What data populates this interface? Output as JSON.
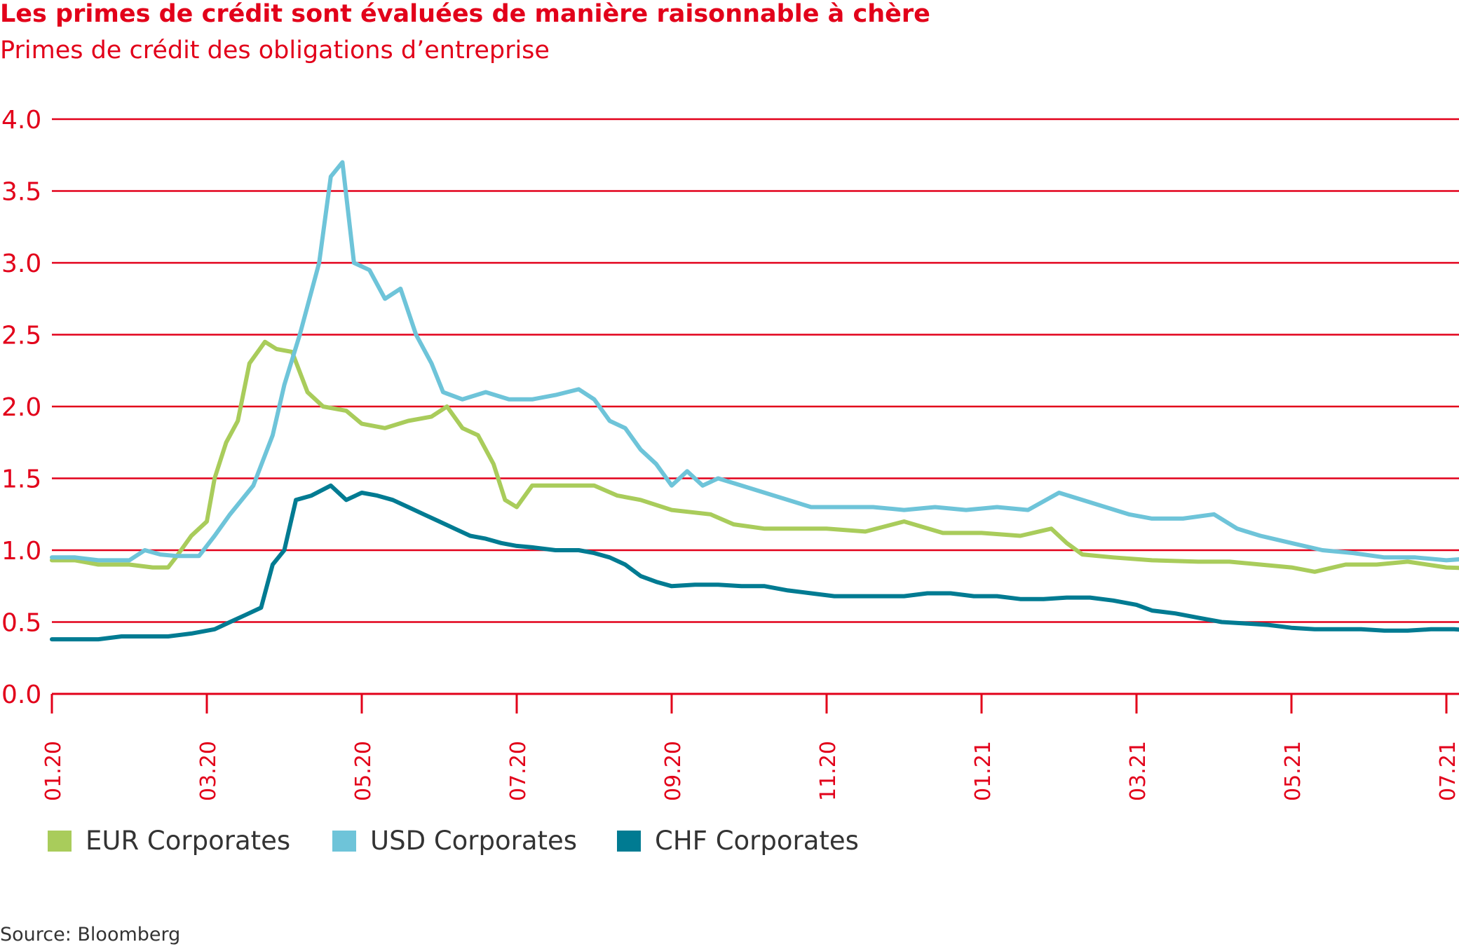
{
  "title": "Les primes de crédit sont évaluées de manière raisonnable à chère",
  "subtitle": "Primes de crédit des obligations d’entreprise",
  "source": "Source: Bloomberg",
  "colors": {
    "accent": "#e2001a",
    "eur": "#a9cc5b",
    "usd": "#6ec4d9",
    "chf": "#007b92"
  },
  "chart_data": {
    "type": "line",
    "ylim": [
      0,
      4
    ],
    "yticks": [
      "0.0",
      "0.5",
      "1.0",
      "1.5",
      "2.0",
      "2.5",
      "3.0",
      "3.5",
      "4.0"
    ],
    "xticks": [
      "01.20",
      "03.20",
      "05.20",
      "07.20",
      "09.20",
      "11.20",
      "01.21",
      "03.21",
      "05.21",
      "07.21"
    ],
    "grid": true,
    "legend_position": "bottom-left",
    "series": [
      {
        "name": "EUR Corporates",
        "color": "#a9cc5b",
        "points": [
          [
            "01.20",
            0.93
          ],
          [
            0.3,
            0.93
          ],
          [
            0.6,
            0.9
          ],
          [
            1.0,
            0.9
          ],
          [
            1.3,
            0.88
          ],
          [
            1.5,
            0.88
          ],
          [
            1.6,
            0.95
          ],
          [
            1.8,
            1.1
          ],
          [
            2.0,
            1.2
          ],
          [
            2.1,
            1.5
          ],
          [
            2.25,
            1.75
          ],
          [
            2.4,
            1.9
          ],
          [
            2.55,
            2.3
          ],
          [
            2.75,
            2.45
          ],
          [
            2.9,
            2.4
          ],
          [
            3.1,
            2.38
          ],
          [
            3.3,
            2.1
          ],
          [
            3.5,
            2.0
          ],
          [
            3.8,
            1.97
          ],
          [
            4.0,
            1.88
          ],
          [
            4.3,
            1.85
          ],
          [
            4.6,
            1.9
          ],
          [
            4.9,
            1.93
          ],
          [
            5.1,
            2.0
          ],
          [
            5.3,
            1.85
          ],
          [
            5.5,
            1.8
          ],
          [
            5.7,
            1.6
          ],
          [
            5.85,
            1.35
          ],
          [
            6.0,
            1.3
          ],
          [
            6.2,
            1.45
          ],
          [
            6.5,
            1.45
          ],
          [
            7.0,
            1.45
          ],
          [
            7.3,
            1.38
          ],
          [
            7.6,
            1.35
          ],
          [
            8.0,
            1.28
          ],
          [
            8.5,
            1.25
          ],
          [
            8.8,
            1.18
          ],
          [
            9.2,
            1.15
          ],
          [
            9.6,
            1.15
          ],
          [
            10.0,
            1.15
          ],
          [
            10.5,
            1.13
          ],
          [
            11.0,
            1.2
          ],
          [
            11.5,
            1.12
          ],
          [
            12.0,
            1.12
          ],
          [
            12.5,
            1.1
          ],
          [
            12.9,
            1.15
          ],
          [
            13.1,
            1.05
          ],
          [
            13.3,
            0.97
          ],
          [
            13.7,
            0.95
          ],
          [
            14.2,
            0.93
          ],
          [
            14.8,
            0.92
          ],
          [
            15.2,
            0.92
          ],
          [
            15.6,
            0.9
          ],
          [
            16.0,
            0.88
          ],
          [
            16.3,
            0.85
          ],
          [
            16.7,
            0.9
          ],
          [
            17.1,
            0.9
          ],
          [
            17.5,
            0.92
          ],
          [
            18.0,
            0.88
          ],
          [
            18.5,
            0.87
          ],
          [
            19.0,
            0.87
          ],
          [
            19.6,
            0.9
          ],
          [
            20.0,
            0.9
          ],
          [
            20.5,
            0.9
          ],
          [
            21.0,
            0.9
          ],
          [
            21.5,
            0.87
          ],
          [
            22.0,
            0.85
          ],
          [
            22.5,
            0.84
          ],
          [
            23.0,
            0.84
          ],
          [
            23.5,
            0.84
          ],
          [
            24.0,
            0.84
          ],
          [
            24.5,
            0.83
          ],
          [
            24.9,
            0.82
          ]
        ]
      },
      {
        "name": "USD Corporates",
        "color": "#6ec4d9",
        "points": [
          [
            "01.20",
            0.95
          ],
          [
            0.3,
            0.95
          ],
          [
            0.6,
            0.93
          ],
          [
            1.0,
            0.93
          ],
          [
            1.2,
            1.0
          ],
          [
            1.4,
            0.97
          ],
          [
            1.6,
            0.96
          ],
          [
            1.9,
            0.96
          ],
          [
            2.1,
            1.1
          ],
          [
            2.3,
            1.25
          ],
          [
            2.6,
            1.45
          ],
          [
            2.85,
            1.8
          ],
          [
            3.0,
            2.15
          ],
          [
            3.2,
            2.5
          ],
          [
            3.45,
            3.0
          ],
          [
            3.6,
            3.6
          ],
          [
            3.75,
            3.7
          ],
          [
            3.9,
            3.0
          ],
          [
            4.1,
            2.95
          ],
          [
            4.3,
            2.75
          ],
          [
            4.5,
            2.82
          ],
          [
            4.7,
            2.5
          ],
          [
            4.9,
            2.3
          ],
          [
            5.05,
            2.1
          ],
          [
            5.3,
            2.05
          ],
          [
            5.6,
            2.1
          ],
          [
            5.9,
            2.05
          ],
          [
            6.2,
            2.05
          ],
          [
            6.5,
            2.08
          ],
          [
            6.8,
            2.12
          ],
          [
            7.0,
            2.05
          ],
          [
            7.2,
            1.9
          ],
          [
            7.4,
            1.85
          ],
          [
            7.6,
            1.7
          ],
          [
            7.8,
            1.6
          ],
          [
            8.0,
            1.45
          ],
          [
            8.2,
            1.55
          ],
          [
            8.4,
            1.45
          ],
          [
            8.6,
            1.5
          ],
          [
            8.9,
            1.45
          ],
          [
            9.2,
            1.4
          ],
          [
            9.5,
            1.35
          ],
          [
            9.8,
            1.3
          ],
          [
            10.2,
            1.3
          ],
          [
            10.6,
            1.3
          ],
          [
            11.0,
            1.28
          ],
          [
            11.4,
            1.3
          ],
          [
            11.8,
            1.28
          ],
          [
            12.2,
            1.3
          ],
          [
            12.6,
            1.28
          ],
          [
            13.0,
            1.4
          ],
          [
            13.3,
            1.35
          ],
          [
            13.6,
            1.3
          ],
          [
            13.9,
            1.25
          ],
          [
            14.2,
            1.22
          ],
          [
            14.6,
            1.22
          ],
          [
            15.0,
            1.25
          ],
          [
            15.3,
            1.15
          ],
          [
            15.6,
            1.1
          ],
          [
            16.0,
            1.05
          ],
          [
            16.4,
            1.0
          ],
          [
            16.8,
            0.98
          ],
          [
            17.2,
            0.95
          ],
          [
            17.6,
            0.95
          ],
          [
            18.0,
            0.93
          ],
          [
            18.5,
            0.95
          ],
          [
            19.0,
            0.95
          ],
          [
            19.4,
            0.92
          ],
          [
            19.8,
            0.9
          ],
          [
            20.2,
            0.95
          ],
          [
            20.6,
            0.97
          ],
          [
            21.0,
            0.97
          ],
          [
            21.4,
            0.97
          ],
          [
            21.8,
            0.93
          ],
          [
            22.2,
            0.9
          ],
          [
            22.6,
            0.88
          ],
          [
            23.0,
            0.88
          ],
          [
            23.5,
            0.87
          ],
          [
            24.0,
            0.85
          ],
          [
            24.5,
            0.84
          ],
          [
            24.9,
            0.82
          ]
        ]
      },
      {
        "name": "CHF Corporates",
        "color": "#007b92",
        "points": [
          [
            "01.20",
            0.38
          ],
          [
            0.3,
            0.38
          ],
          [
            0.6,
            0.38
          ],
          [
            0.9,
            0.4
          ],
          [
            1.2,
            0.4
          ],
          [
            1.5,
            0.4
          ],
          [
            1.8,
            0.42
          ],
          [
            2.1,
            0.45
          ],
          [
            2.3,
            0.5
          ],
          [
            2.5,
            0.55
          ],
          [
            2.7,
            0.6
          ],
          [
            2.85,
            0.9
          ],
          [
            3.0,
            1.0
          ],
          [
            3.15,
            1.35
          ],
          [
            3.35,
            1.38
          ],
          [
            3.6,
            1.45
          ],
          [
            3.8,
            1.35
          ],
          [
            4.0,
            1.4
          ],
          [
            4.2,
            1.38
          ],
          [
            4.4,
            1.35
          ],
          [
            4.6,
            1.3
          ],
          [
            4.8,
            1.25
          ],
          [
            5.0,
            1.2
          ],
          [
            5.2,
            1.15
          ],
          [
            5.4,
            1.1
          ],
          [
            5.6,
            1.08
          ],
          [
            5.8,
            1.05
          ],
          [
            6.0,
            1.03
          ],
          [
            6.2,
            1.02
          ],
          [
            6.5,
            1.0
          ],
          [
            6.8,
            1.0
          ],
          [
            7.0,
            0.98
          ],
          [
            7.2,
            0.95
          ],
          [
            7.4,
            0.9
          ],
          [
            7.6,
            0.82
          ],
          [
            7.8,
            0.78
          ],
          [
            8.0,
            0.75
          ],
          [
            8.3,
            0.76
          ],
          [
            8.6,
            0.76
          ],
          [
            8.9,
            0.75
          ],
          [
            9.2,
            0.75
          ],
          [
            9.5,
            0.72
          ],
          [
            9.8,
            0.7
          ],
          [
            10.1,
            0.68
          ],
          [
            10.4,
            0.68
          ],
          [
            10.7,
            0.68
          ],
          [
            11.0,
            0.68
          ],
          [
            11.3,
            0.7
          ],
          [
            11.6,
            0.7
          ],
          [
            11.9,
            0.68
          ],
          [
            12.2,
            0.68
          ],
          [
            12.5,
            0.66
          ],
          [
            12.8,
            0.66
          ],
          [
            13.1,
            0.67
          ],
          [
            13.4,
            0.67
          ],
          [
            13.7,
            0.65
          ],
          [
            14.0,
            0.62
          ],
          [
            14.2,
            0.58
          ],
          [
            14.5,
            0.56
          ],
          [
            14.8,
            0.53
          ],
          [
            15.1,
            0.5
          ],
          [
            15.4,
            0.49
          ],
          [
            15.7,
            0.48
          ],
          [
            16.0,
            0.46
          ],
          [
            16.3,
            0.45
          ],
          [
            16.6,
            0.45
          ],
          [
            16.9,
            0.45
          ],
          [
            17.2,
            0.44
          ],
          [
            17.5,
            0.44
          ],
          [
            17.8,
            0.45
          ],
          [
            18.1,
            0.45
          ],
          [
            18.4,
            0.44
          ],
          [
            18.7,
            0.42
          ],
          [
            19.0,
            0.4
          ],
          [
            19.3,
            0.38
          ],
          [
            19.6,
            0.37
          ],
          [
            19.9,
            0.36
          ],
          [
            20.2,
            0.36
          ],
          [
            20.5,
            0.36
          ],
          [
            20.8,
            0.35
          ],
          [
            21.1,
            0.35
          ],
          [
            21.4,
            0.34
          ],
          [
            21.7,
            0.34
          ],
          [
            22.0,
            0.34
          ],
          [
            22.3,
            0.34
          ],
          [
            22.6,
            0.33
          ],
          [
            22.9,
            0.33
          ],
          [
            23.2,
            0.34
          ],
          [
            23.5,
            0.34
          ],
          [
            23.8,
            0.33
          ],
          [
            24.1,
            0.34
          ],
          [
            24.4,
            0.33
          ],
          [
            24.7,
            0.33
          ],
          [
            24.9,
            0.32
          ]
        ]
      }
    ]
  }
}
